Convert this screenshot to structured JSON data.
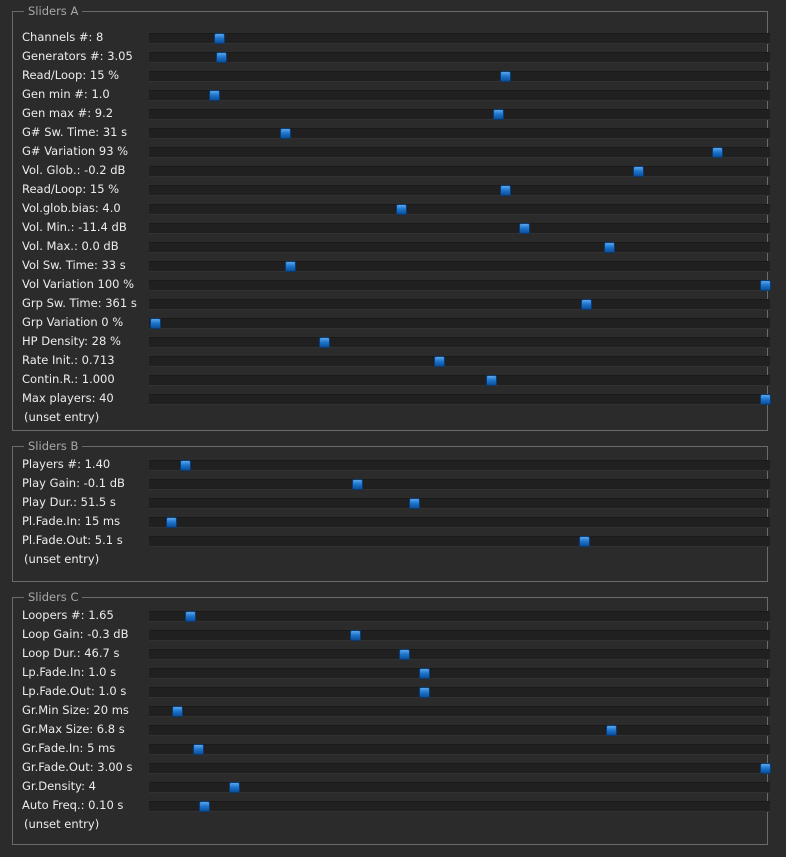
{
  "groups": [
    {
      "title": "Sliders A",
      "rows": [
        {
          "label": "Channels #: 8",
          "value": 0.105
        },
        {
          "label": "Generators #: 3.05",
          "value": 0.109
        },
        {
          "label": "Read/Loop: 15 %",
          "value": 0.574
        },
        {
          "label": "Gen min #: 1.0",
          "value": 0.097
        },
        {
          "label": "Gen max #: 9.2",
          "value": 0.563
        },
        {
          "label": "G# Sw. Time: 31 s",
          "value": 0.213
        },
        {
          "label": "G# Variation 93 %",
          "value": 0.921
        },
        {
          "label": "Vol. Glob.: -0.2 dB",
          "value": 0.792
        },
        {
          "label": "Read/Loop: 15 %",
          "value": 0.574
        },
        {
          "label": "Vol.glob.bias: 4.0",
          "value": 0.403
        },
        {
          "label": "Vol. Min.: -11.4 dB",
          "value": 0.605
        },
        {
          "label": "Vol. Max.: 0.0 dB",
          "value": 0.745
        },
        {
          "label": "Vol Sw. Time: 33 s",
          "value": 0.221
        },
        {
          "label": "Vol Variation 100 %",
          "value": 1.0
        },
        {
          "label": "Grp Sw. Time: 361 s",
          "value": 0.706
        },
        {
          "label": "Grp Variation 0 %",
          "value": 0.0
        },
        {
          "label": "HP Density: 28 %",
          "value": 0.277
        },
        {
          "label": "Rate Init.: 0.713",
          "value": 0.465
        },
        {
          "label": "Contin.R.: 1.000",
          "value": 0.551
        },
        {
          "label": "Max players: 40",
          "value": 1.0
        }
      ],
      "unset": "(unset entry)"
    },
    {
      "title": "Sliders B",
      "rows": [
        {
          "label": "Players #: 1.40",
          "value": 0.049
        },
        {
          "label": "Play Gain: -0.1 dB",
          "value": 0.331
        },
        {
          "label": "Play Dur.: 51.5 s",
          "value": 0.425
        },
        {
          "label": "Pl.Fade.In: 15 ms",
          "value": 0.026
        },
        {
          "label": "Pl.Fade.Out: 5.1 s",
          "value": 0.703
        }
      ],
      "unset": "(unset entry)"
    },
    {
      "title": "Sliders C",
      "rows": [
        {
          "label": "Loopers #: 1.65",
          "value": 0.057
        },
        {
          "label": "Loop Gain: -0.3 dB",
          "value": 0.328
        },
        {
          "label": "Loop Dur.: 46.7 s",
          "value": 0.408
        },
        {
          "label": "Lp.Fade.In: 1.0 s",
          "value": 0.441
        },
        {
          "label": "Lp.Fade.Out: 1.0 s",
          "value": 0.441
        },
        {
          "label": "Gr.Min Size: 20 ms",
          "value": 0.036
        },
        {
          "label": "Gr.Max Size: 6.8 s",
          "value": 0.748
        },
        {
          "label": "Gr.Fade.In: 5 ms",
          "value": 0.071
        },
        {
          "label": "Gr.Fade.Out: 3.00 s",
          "value": 1.0
        },
        {
          "label": "Gr.Density: 4",
          "value": 0.129
        },
        {
          "label": "Auto Freq.: 0.10 s",
          "value": 0.08
        }
      ],
      "unset": "(unset entry)"
    }
  ],
  "colors": {
    "background": "#2b2b2b",
    "frame": "#6b6b6b",
    "track": "#202020",
    "thumb": "#1f76cf",
    "text": "#ececec",
    "title": "#a8a8a8"
  }
}
